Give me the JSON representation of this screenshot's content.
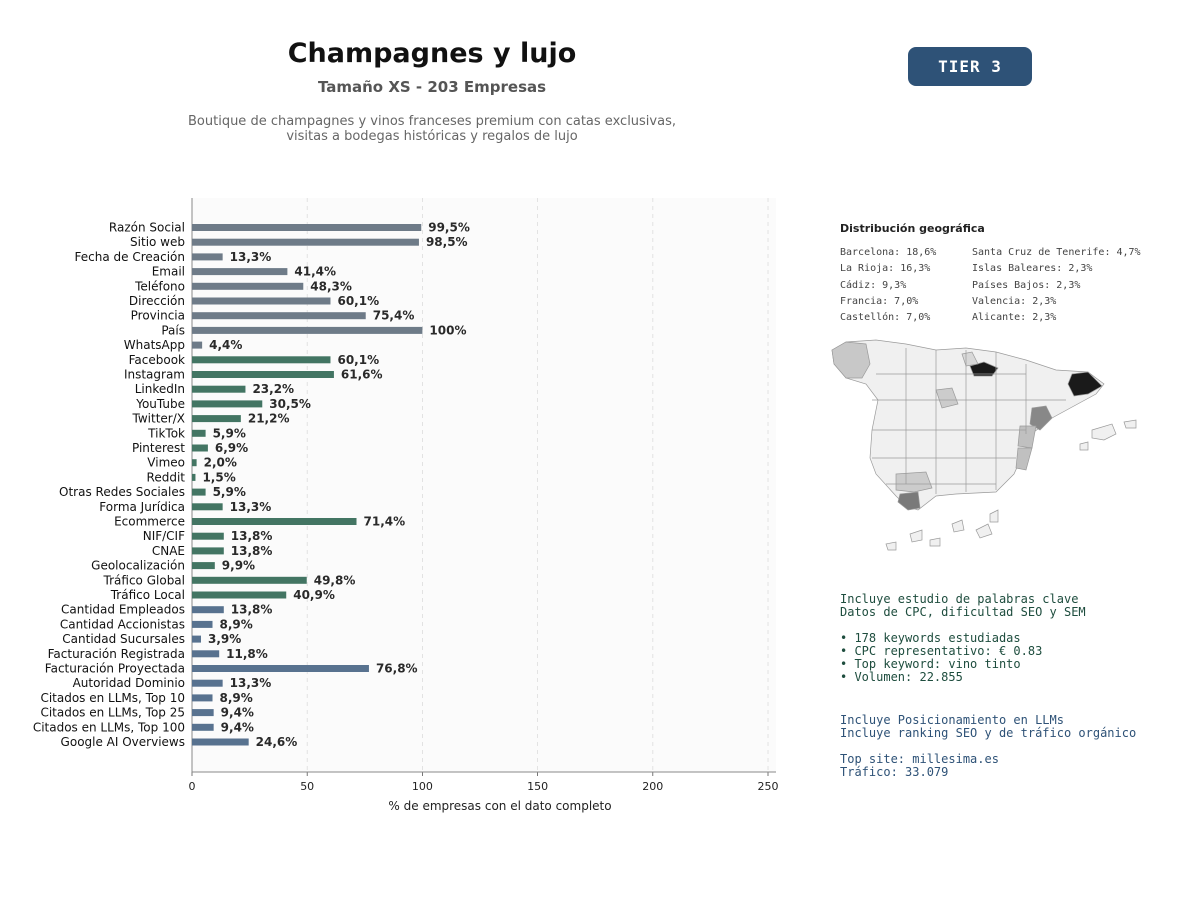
{
  "header": {
    "title": "Champagnes y lujo",
    "subtitle": "Tamaño XS - 203 Empresas",
    "description_line1": "Boutique de champagnes y vinos franceses premium con catas exclusivas,",
    "description_line2": "visitas a bodegas históricas y regalos de lujo",
    "tier": "TIER 3"
  },
  "colors": {
    "gray_group": "#6e7b88",
    "green_group": "#437563",
    "blue_group": "#58728f",
    "badge": "#2e5277"
  },
  "chart_data": {
    "type": "bar",
    "orientation": "horizontal",
    "xlabel": "% de empresas con el dato completo",
    "xlim": [
      0,
      250
    ],
    "xticks": [
      0,
      50,
      100,
      150,
      200,
      250
    ],
    "grid": "vertical dashed",
    "categories": [
      "Razón Social",
      "Sitio web",
      "Fecha de Creación",
      "Email",
      "Teléfono",
      "Dirección",
      "Provincia",
      "País",
      "WhatsApp",
      "Facebook",
      "Instagram",
      "LinkedIn",
      "YouTube",
      "Twitter/X",
      "TikTok",
      "Pinterest",
      "Vimeo",
      "Reddit",
      "Otras Redes Sociales",
      "Forma Jurídica",
      "Ecommerce",
      "NIF/CIF",
      "CNAE",
      "Geolocalización",
      "Tráfico Global",
      "Tráfico Local",
      "Cantidad Empleados",
      "Cantidad Accionistas",
      "Cantidad Sucursales",
      "Facturación Registrada",
      "Facturación Proyectada",
      "Autoridad Dominio",
      "Citados en LLMs, Top 10",
      "Citados en LLMs, Top 25",
      "Citados en LLMs, Top 100",
      "Google AI Overviews"
    ],
    "values": [
      99.5,
      98.5,
      13.3,
      41.4,
      48.3,
      60.1,
      75.4,
      100,
      4.4,
      60.1,
      61.6,
      23.2,
      30.5,
      21.2,
      5.9,
      6.9,
      2.0,
      1.5,
      5.9,
      13.3,
      71.4,
      13.8,
      13.8,
      9.9,
      49.8,
      40.9,
      13.8,
      8.9,
      3.9,
      11.8,
      76.8,
      13.3,
      8.9,
      9.4,
      9.4,
      24.6
    ],
    "value_labels": [
      "99,5%",
      "98,5%",
      "13,3%",
      "41,4%",
      "48,3%",
      "60,1%",
      "75,4%",
      "100%",
      "4,4%",
      "60,1%",
      "61,6%",
      "23,2%",
      "30,5%",
      "21,2%",
      "5,9%",
      "6,9%",
      "2,0%",
      "1,5%",
      "5,9%",
      "13,3%",
      "71,4%",
      "13,8%",
      "13,8%",
      "9,9%",
      "49,8%",
      "40,9%",
      "13,8%",
      "8,9%",
      "3,9%",
      "11,8%",
      "76,8%",
      "13,3%",
      "8,9%",
      "9,4%",
      "9,4%",
      "24,6%"
    ],
    "groups": [
      "gray",
      "gray",
      "gray",
      "gray",
      "gray",
      "gray",
      "gray",
      "gray",
      "gray",
      "green",
      "green",
      "green",
      "green",
      "green",
      "green",
      "green",
      "green",
      "green",
      "green",
      "green",
      "green",
      "green",
      "green",
      "green",
      "green",
      "green",
      "blue",
      "blue",
      "blue",
      "blue",
      "blue",
      "blue",
      "blue",
      "blue",
      "blue",
      "blue"
    ]
  },
  "geo": {
    "title": "Distribución geográfica",
    "items": [
      "Barcelona: 18,6%",
      "La Rioja: 16,3%",
      "Cádiz: 9,3%",
      "Francia: 7,0%",
      "Castellón: 7,0%",
      "Santa Cruz de Tenerife: 4,7%",
      "Islas Baleares: 2,3%",
      "Países Bajos: 2,3%",
      "Valencia: 2,3%",
      "Alicante: 2,3%"
    ]
  },
  "seo": {
    "line1": "Incluye estudio de palabras clave",
    "line2": "Datos de CPC, dificultad SEO y SEM",
    "bullets": [
      "• 178 keywords estudiadas",
      "• CPC representativo: € 0.83",
      "• Top keyword: vino tinto",
      "• Volumen: 22.855"
    ]
  },
  "llm": {
    "line1": "Incluye Posicionamiento en LLMs",
    "line2": "Incluye ranking SEO y de tráfico orgánico",
    "top_site": "Top site: millesima.es",
    "traffic": "Tráfico: 33.079"
  }
}
